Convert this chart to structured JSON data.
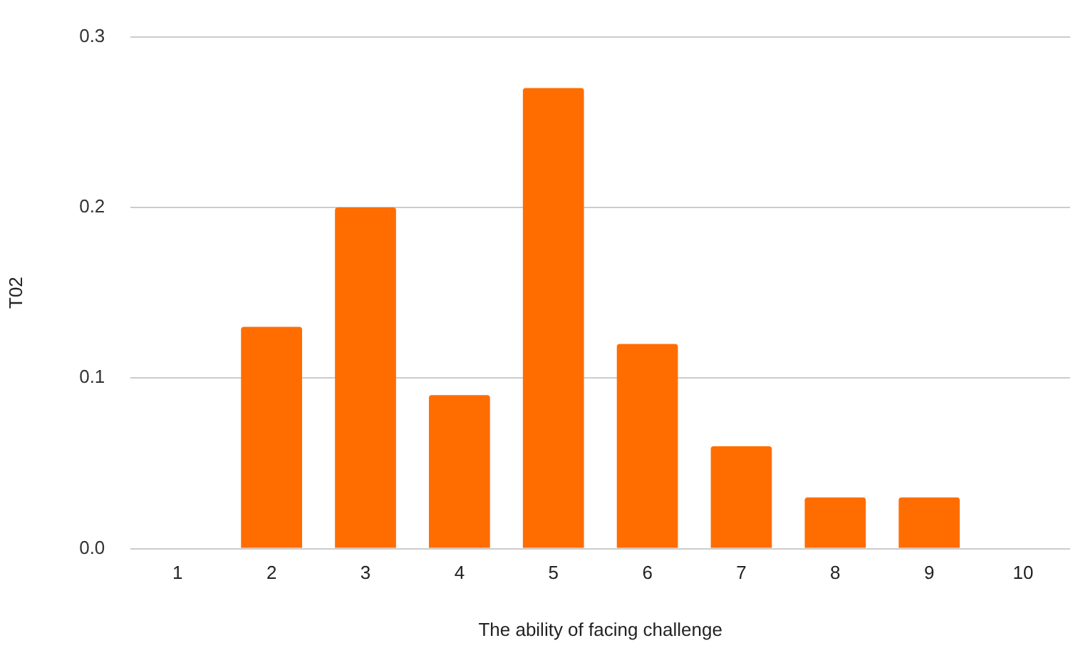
{
  "chart_data": {
    "type": "bar",
    "xlabel": "The ability of facing challenge",
    "ylabel": "T02",
    "categories": [
      "1",
      "2",
      "3",
      "4",
      "5",
      "6",
      "7",
      "8",
      "9",
      "10"
    ],
    "values": [
      0,
      0.13,
      0.2,
      0.09,
      0.27,
      0.12,
      0.06,
      0.03,
      0.03,
      0
    ],
    "color": "#ff6d01",
    "ylim": [
      0,
      0.3
    ],
    "yticks": [
      {
        "value": 0,
        "label": "0.0"
      },
      {
        "value": 0.1,
        "label": "0.1"
      },
      {
        "value": 0.2,
        "label": "0.2"
      },
      {
        "value": 0.3,
        "label": "0.3"
      }
    ],
    "grid": "y",
    "legend": false
  }
}
